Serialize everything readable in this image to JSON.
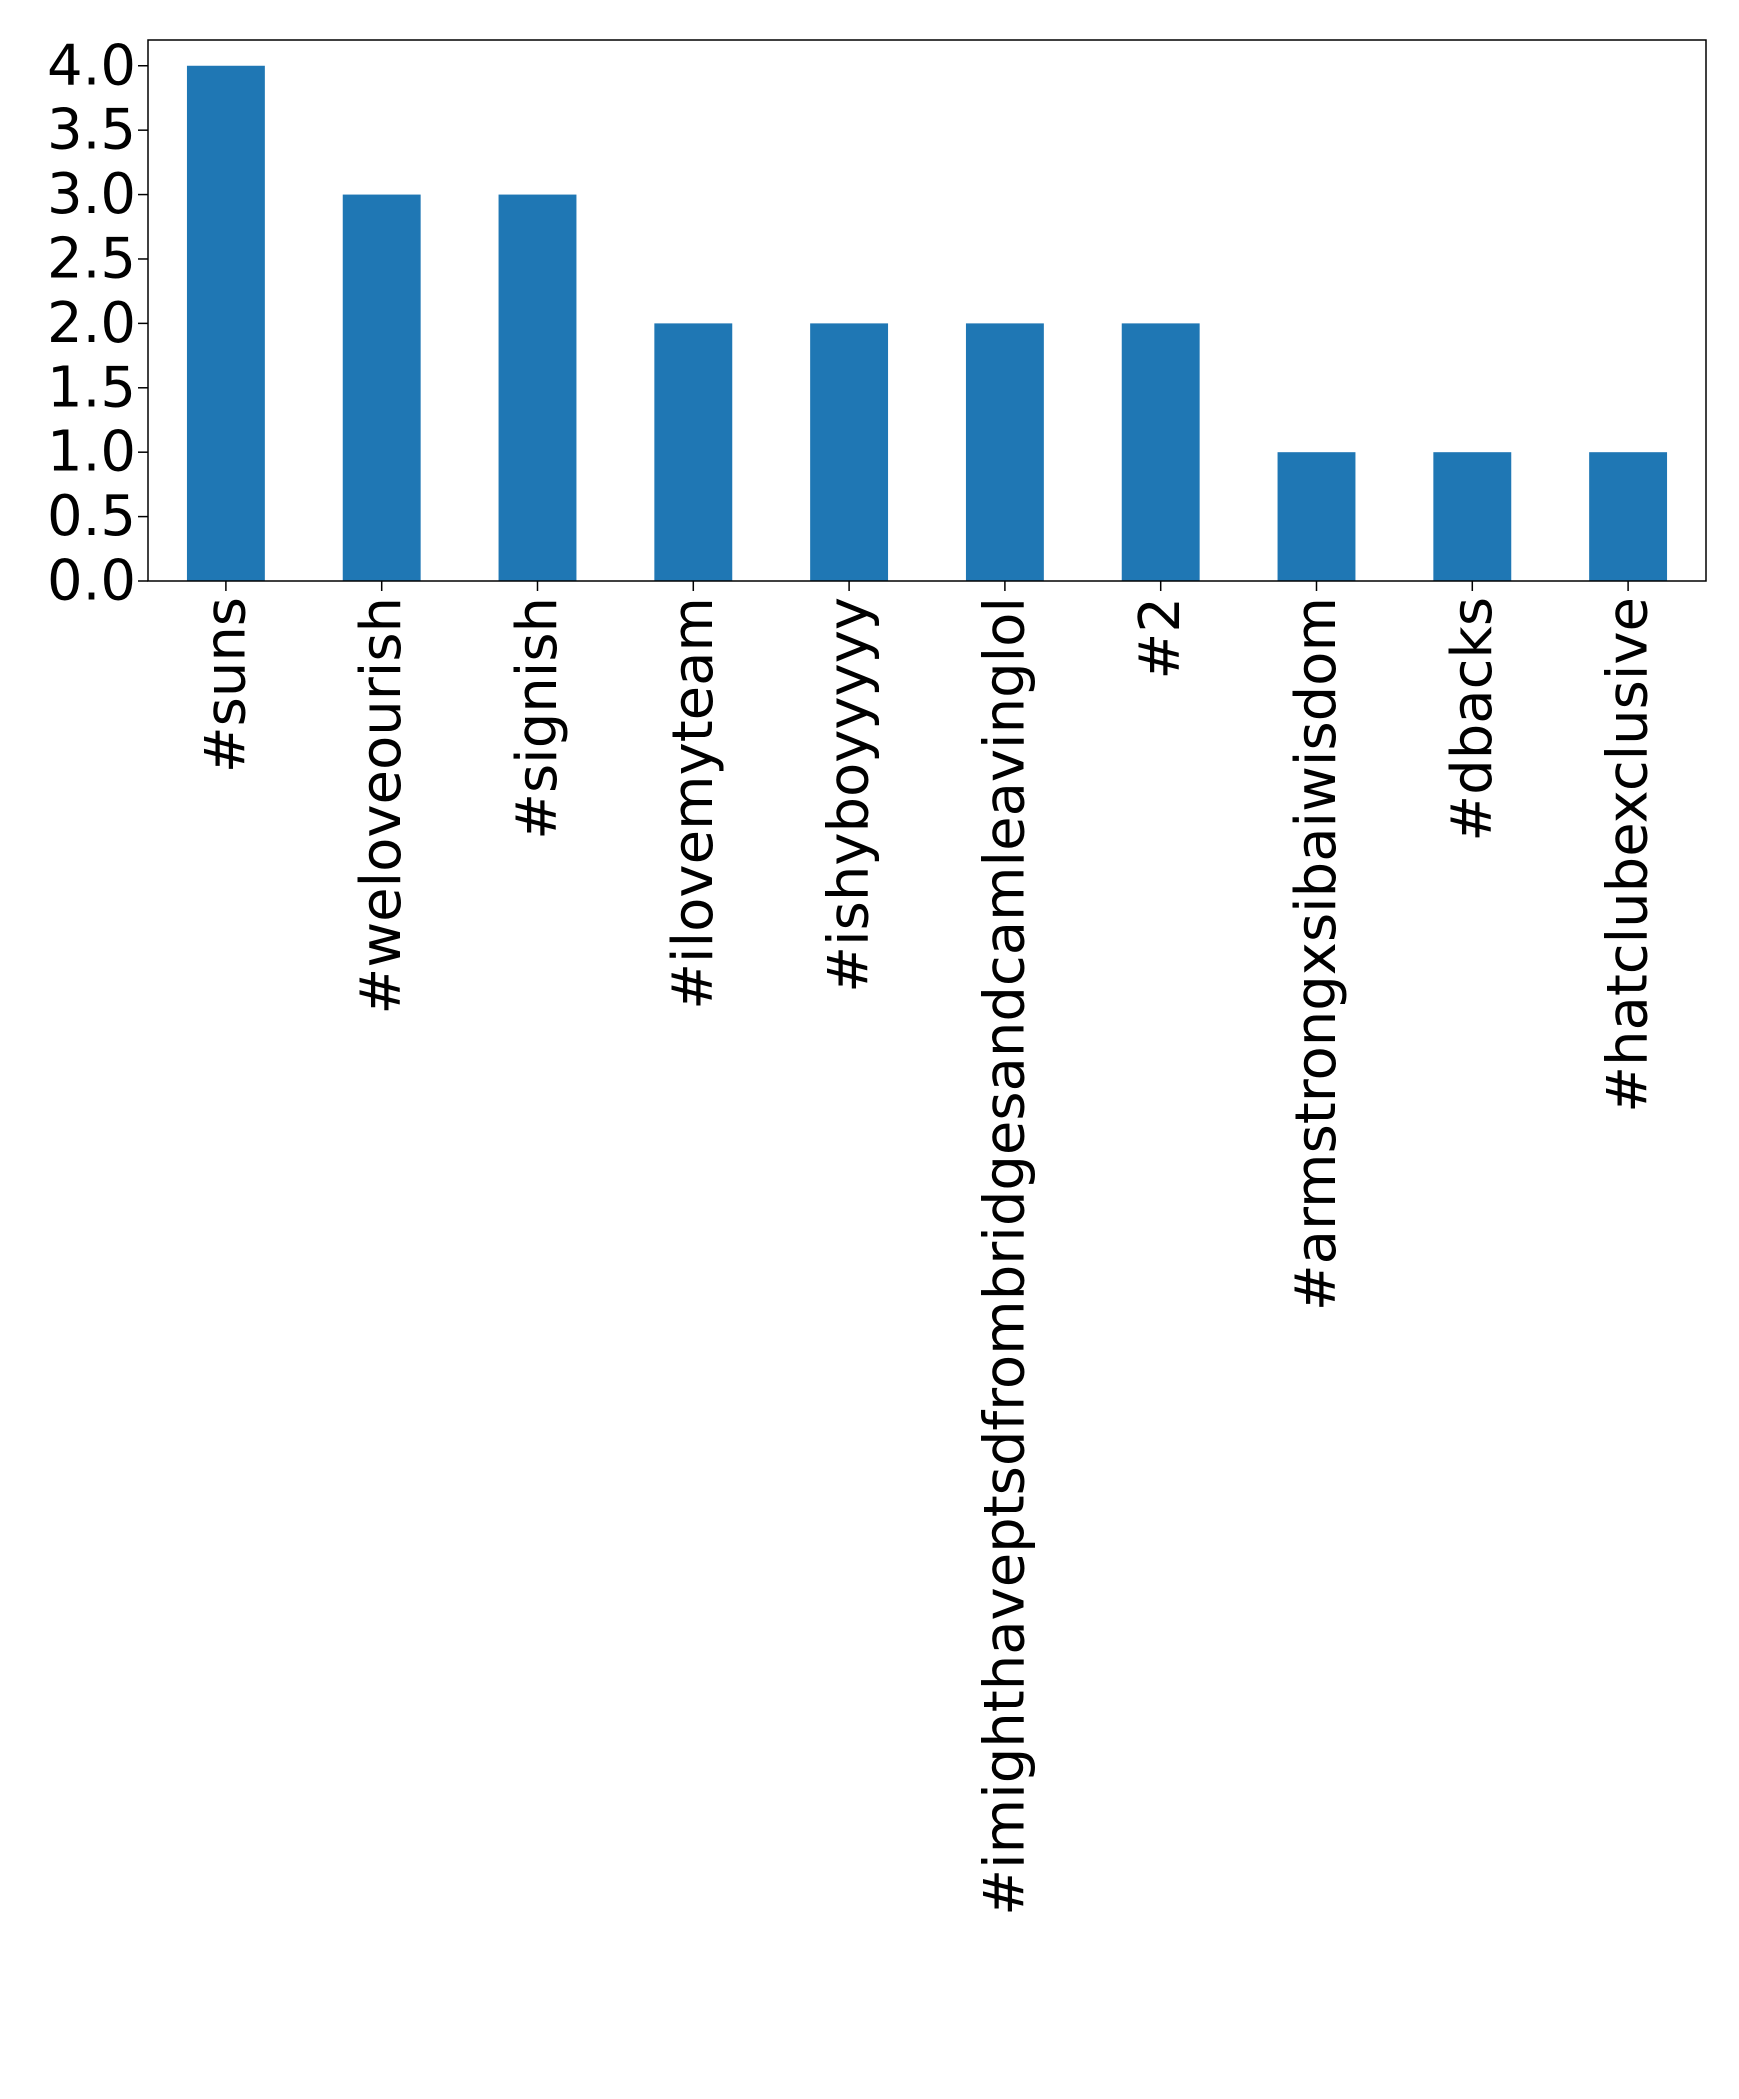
{
  "chart_data": {
    "type": "bar",
    "title": "",
    "xlabel": "",
    "ylabel": "",
    "categories": [
      "#suns",
      "#weloveourish",
      "#signish",
      "#ilovemyteam",
      "#ishyboyyyyy",
      "#imighthaveptsdfrombridgesandcamleavinglol",
      "#2",
      "#armstrongxsibaiwisdom",
      "#dbacks",
      "#hatclubexclusive"
    ],
    "values": [
      4,
      3,
      3,
      2,
      2,
      2,
      2,
      1,
      1,
      1
    ],
    "ylim": [
      0,
      4.2
    ],
    "yticks": [
      "0.0",
      "0.5",
      "1.0",
      "1.5",
      "2.0",
      "2.5",
      "3.0",
      "3.5",
      "4.0"
    ],
    "grid": false,
    "legend": "none",
    "bar_color": "#1f77b4"
  }
}
